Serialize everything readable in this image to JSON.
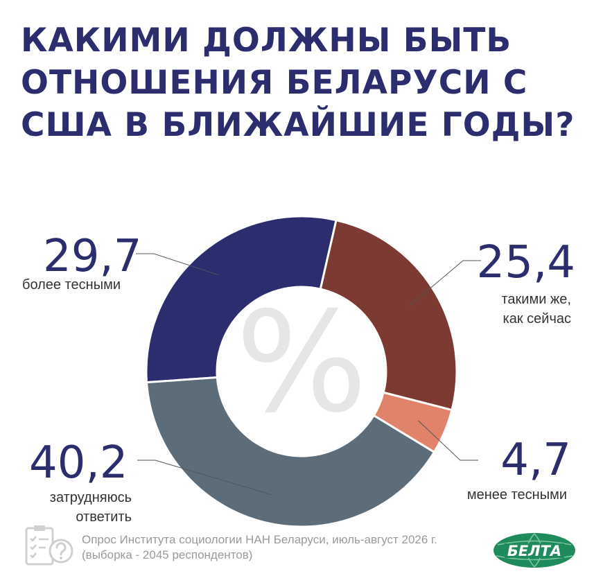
{
  "title_lines": [
    "Какими должны быть",
    "отношения Беларуси с",
    "США в ближайшие годы?"
  ],
  "colors": {
    "title": "#2b2d6e",
    "values": "#2b2d6e",
    "label_text": "#333333",
    "footer_text": "#9a9a9a",
    "center_percent": "#e6e6e6",
    "logo_green": "#1f8a5b"
  },
  "center_symbol": "%",
  "chart_data": {
    "type": "pie",
    "donut": true,
    "title": "Какими должны быть отношения Беларуси с США в ближайшие годы?",
    "slices": [
      {
        "value": 29.7,
        "value_text": "29,7",
        "label_lines": [
          "более тесными"
        ],
        "color": "#2b2d6e"
      },
      {
        "value": 25.4,
        "value_text": "25,4",
        "label_lines": [
          "такими же,",
          "как сейчас"
        ],
        "color": "#7d3a32"
      },
      {
        "value": 4.7,
        "value_text": "4,7",
        "label_lines": [
          "менее тесными"
        ],
        "color": "#e0836a"
      },
      {
        "value": 40.2,
        "value_text": "40,2",
        "label_lines": [
          "затрудняюсь",
          "ответить"
        ],
        "color": "#5c6c79"
      }
    ]
  },
  "footer": {
    "lines": [
      "Опрос Института социологии НАН Беларуси, июль-август 2026 г.",
      "(выборка - 2045 респондентов)"
    ],
    "icon": "clipboard-question-icon"
  },
  "logo": {
    "text": "БЕЛТА",
    "icon": "globe-logo-icon"
  }
}
